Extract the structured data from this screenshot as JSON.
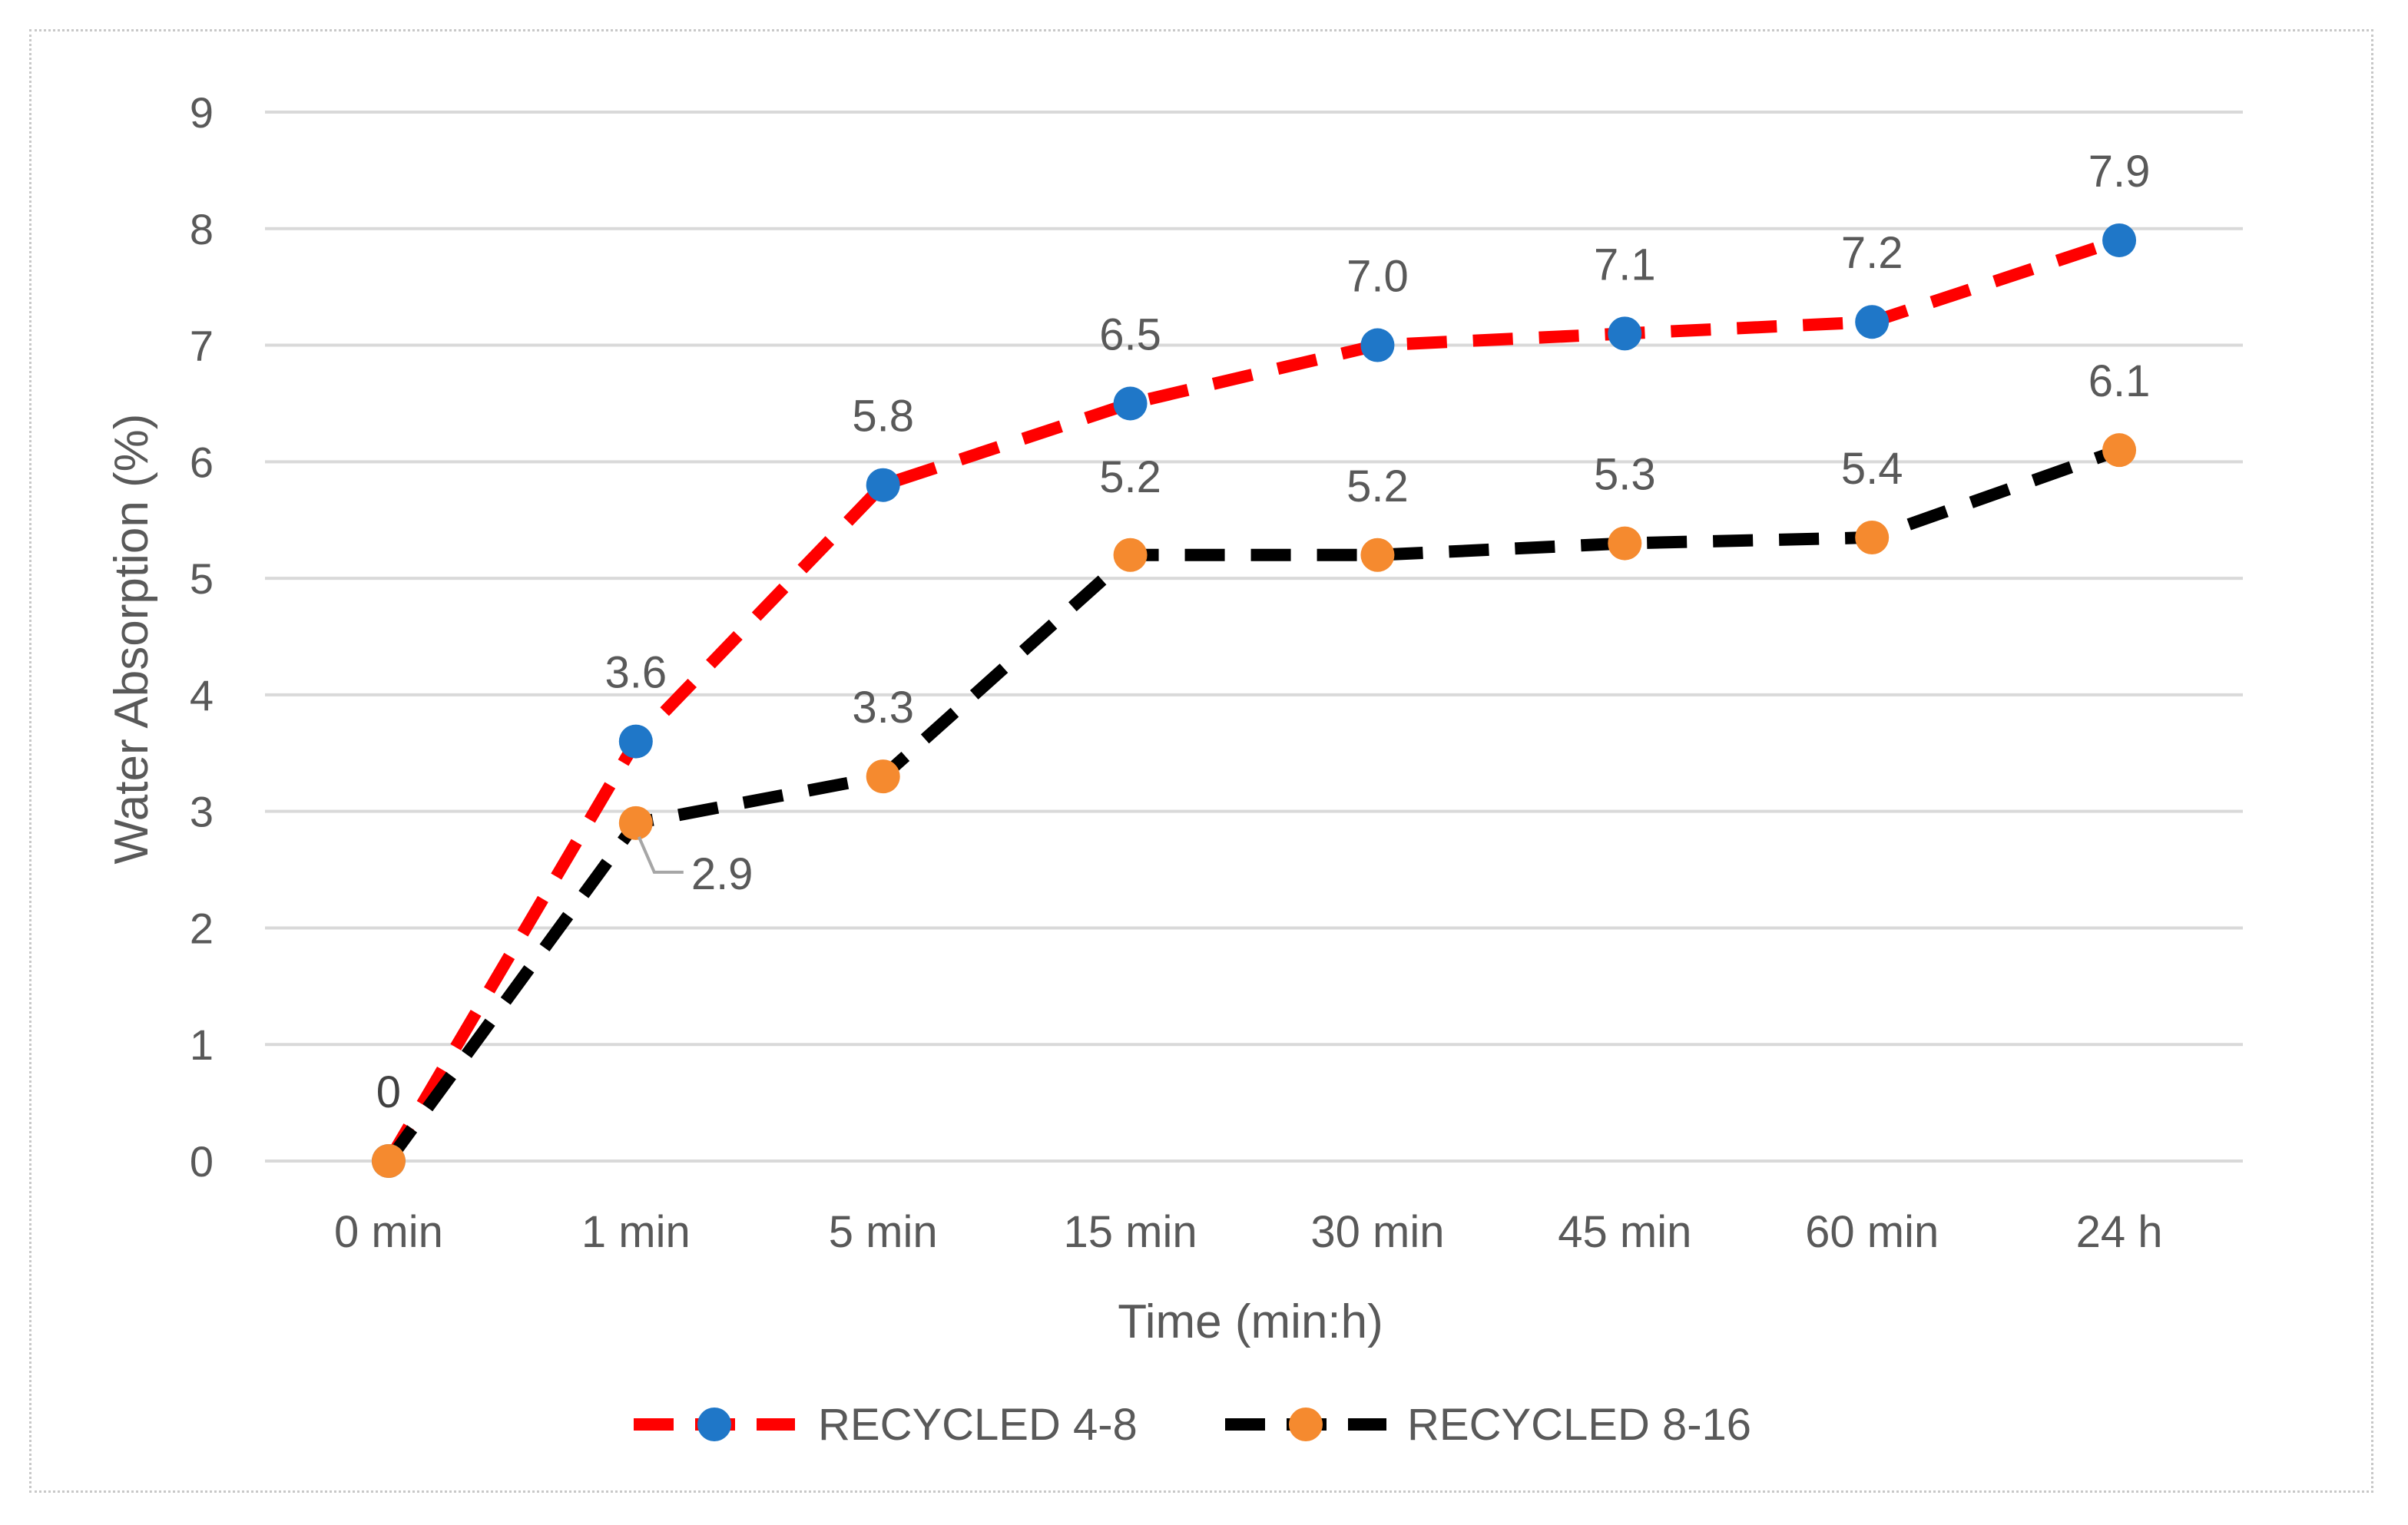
{
  "chart_data": {
    "type": "line",
    "title": "",
    "xlabel": "Time (min:h)",
    "ylabel": "Water Absorption (%)",
    "categories": [
      "0 min",
      "1 min",
      "5 min",
      "15 min",
      "30 min",
      "45 min",
      "60 min",
      "24 h"
    ],
    "ylim": [
      0,
      9
    ],
    "yticks": [
      "0",
      "1",
      "2",
      "3",
      "4",
      "5",
      "6",
      "7",
      "8",
      "9"
    ],
    "grid": true,
    "legend_position": "bottom",
    "series": [
      {
        "name": "RECYCLED 4-8",
        "values": [
          0,
          3.6,
          5.8,
          6.5,
          7.0,
          7.1,
          7.2,
          7.9
        ],
        "labels": [
          "0",
          "3.6",
          "5.8",
          "6.5",
          "7.0",
          "7.1",
          "7.2",
          "7.9"
        ],
        "line_color": "#ff0000",
        "marker_color": "#1f77c8",
        "line_style": "dashed"
      },
      {
        "name": "RECYCLED 8-16",
        "values": [
          0,
          2.9,
          3.3,
          5.2,
          5.2,
          5.3,
          5.35,
          6.1
        ],
        "labels": [
          "0",
          "2.9",
          "3.3",
          "5.2",
          "5.2",
          "5.3",
          "5.4",
          "6.1"
        ],
        "line_color": "#000000",
        "marker_color": "#f58a2f",
        "line_style": "dashed"
      }
    ]
  }
}
